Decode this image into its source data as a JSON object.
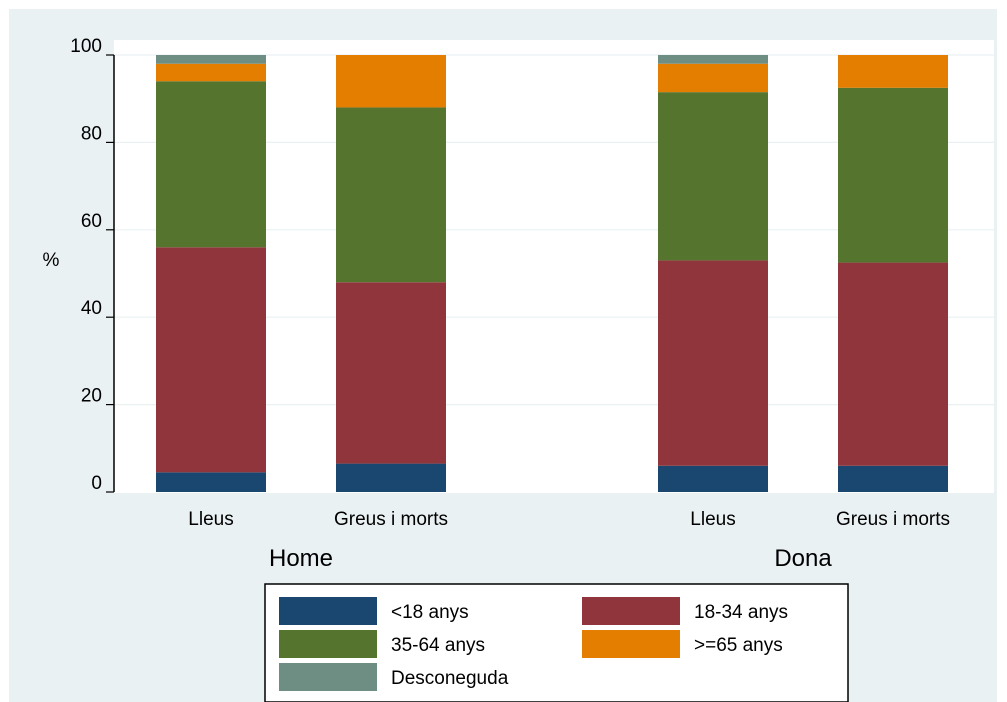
{
  "chart_data": {
    "type": "bar",
    "stacked": true,
    "ylabel": "%",
    "ylim": [
      0,
      100
    ],
    "yticks": [
      "0",
      "20",
      "40",
      "60",
      "80",
      "100"
    ],
    "grid": true,
    "legend_placement": "bottom",
    "groups": [
      "Home",
      "Dona"
    ],
    "categories": [
      "Lleus",
      "Greus i morts",
      "Lleus",
      "Greus i morts"
    ],
    "series": [
      {
        "name": "<18 anys",
        "color": "#1a476f",
        "values": [
          4.5,
          6.5,
          6.0,
          6.0
        ]
      },
      {
        "name": "18-34 anys",
        "color": "#90353b",
        "values": [
          51.5,
          41.5,
          47.0,
          46.5
        ]
      },
      {
        "name": "35-64 anys",
        "color": "#55752f",
        "values": [
          38.0,
          40.0,
          38.5,
          40.0
        ]
      },
      {
        "name": ">=65 anys",
        "color": "#e37e00",
        "values": [
          4.0,
          12.0,
          6.5,
          7.5
        ]
      },
      {
        "name": "Desconeguda",
        "color": "#6e8e84",
        "values": [
          2.0,
          0.0,
          2.0,
          0.0
        ]
      }
    ]
  }
}
